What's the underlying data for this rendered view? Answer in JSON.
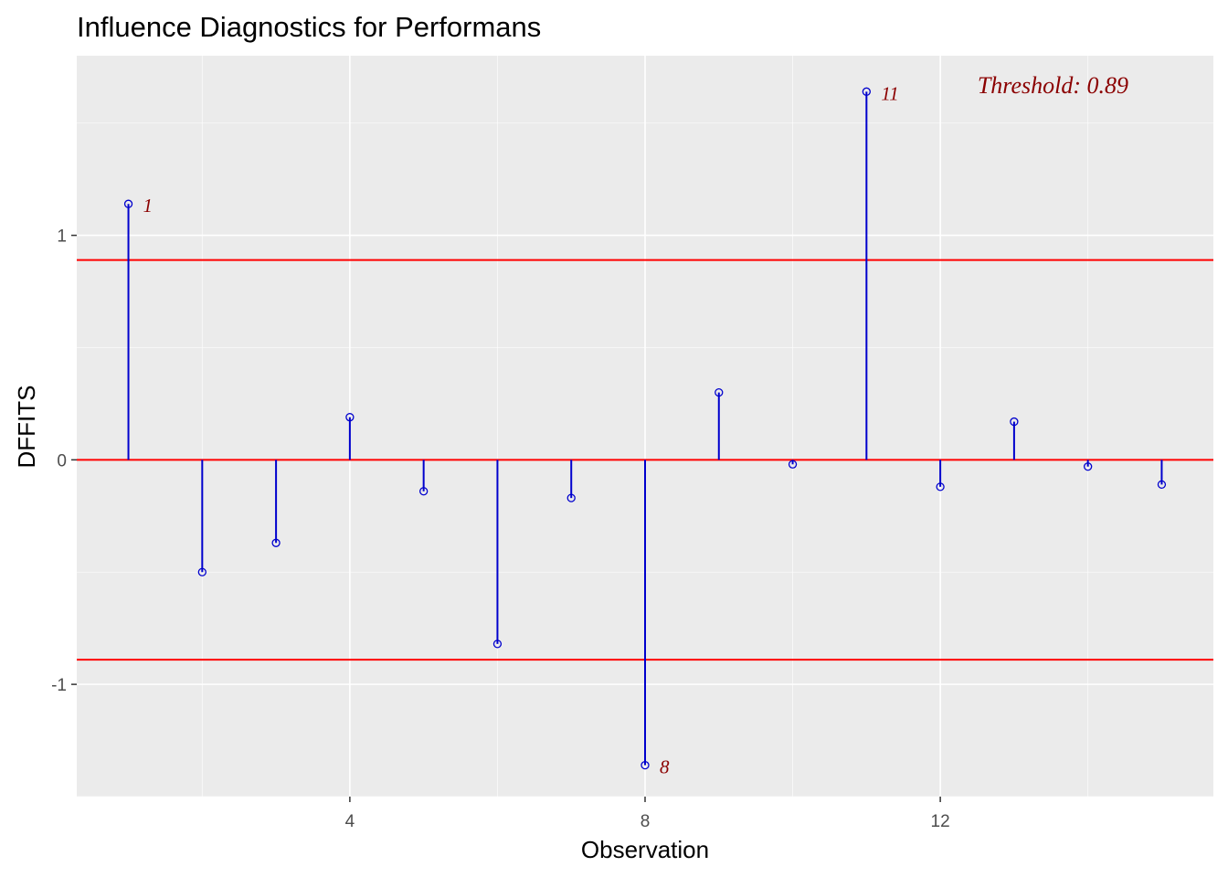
{
  "chart_data": {
    "type": "lollipop",
    "title": "Influence Diagnostics for Performans",
    "xlabel": "Observation",
    "ylabel": "DFFITS",
    "xlim": [
      0.3,
      15.7
    ],
    "ylim": [
      -1.5,
      1.8
    ],
    "x_ticks": [
      4,
      8,
      12
    ],
    "x_tick_labels": [
      "4",
      "8",
      "12"
    ],
    "x_minor_ticks": [
      2,
      6,
      10,
      14
    ],
    "y_ticks": [
      -1,
      0,
      1
    ],
    "y_tick_labels": [
      "-1",
      "0",
      "1"
    ],
    "y_minor_ticks": [
      -1.5,
      -0.5,
      0.5,
      1.5
    ],
    "grid": true,
    "threshold": 0.89,
    "threshold_label": "Threshold: 0.89",
    "reference_lines": [
      0.89,
      0,
      -0.89
    ],
    "x": [
      1,
      2,
      3,
      4,
      5,
      6,
      7,
      8,
      9,
      10,
      11,
      12,
      13,
      14,
      15
    ],
    "values": [
      1.14,
      -0.5,
      -0.37,
      0.19,
      -0.14,
      -0.82,
      -0.17,
      -1.36,
      0.3,
      -0.02,
      1.64,
      -0.12,
      0.17,
      -0.03,
      -0.11
    ],
    "point_labels": [
      {
        "x": 1,
        "text": "1"
      },
      {
        "x": 8,
        "text": "8"
      },
      {
        "x": 11,
        "text": "11"
      }
    ],
    "colors": {
      "panel_background": "#ebebeb",
      "grid_major": "#ffffff",
      "stem": "#0000cd",
      "reference_line": "#ff0000",
      "label": "#8b0000",
      "tick_text": "#4d4d4d"
    }
  }
}
